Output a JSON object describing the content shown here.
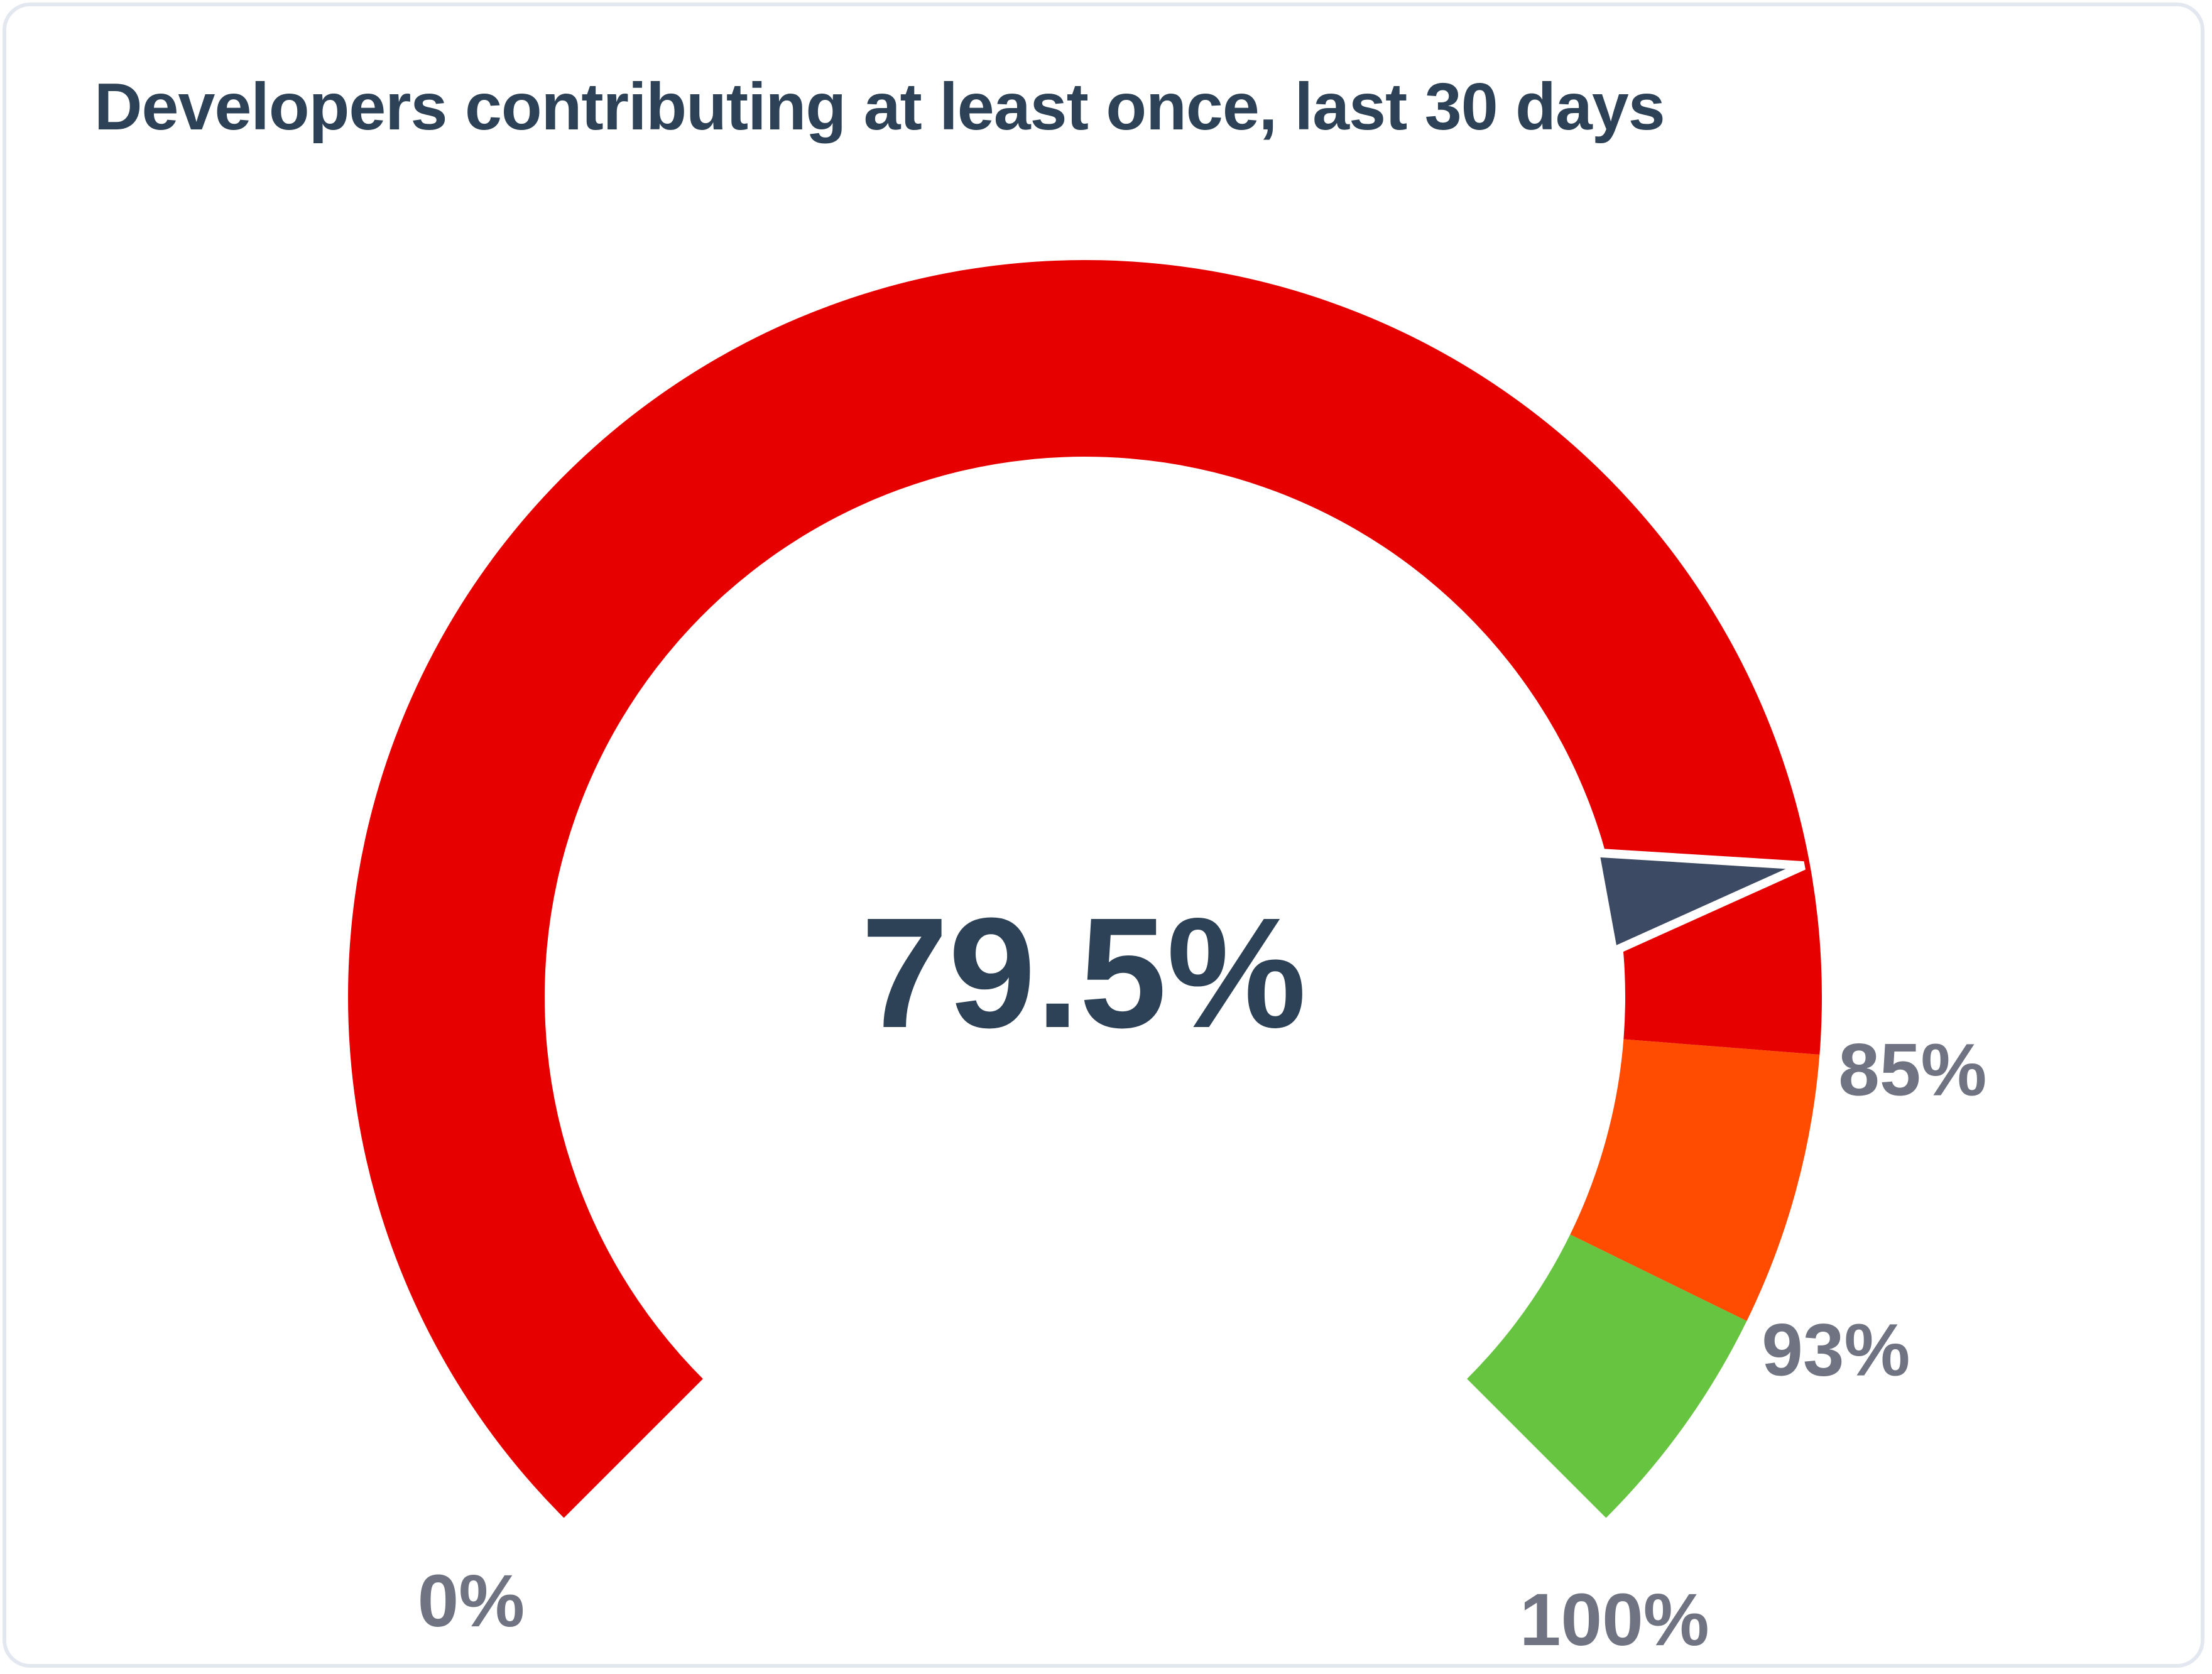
{
  "chart_data": {
    "type": "gauge",
    "title": "Developers contributing at least once, last 30 days",
    "value": 79.5,
    "value_label": "79.5%",
    "min": 0,
    "max": 100,
    "segments": [
      {
        "from": 0,
        "to": 85,
        "color": "#e70000"
      },
      {
        "from": 85,
        "to": 93,
        "color": "#ff4c00"
      },
      {
        "from": 93,
        "to": 100,
        "color": "#67c440"
      }
    ],
    "tick_labels": [
      {
        "value": 0,
        "label": "0%"
      },
      {
        "value": 85,
        "label": "85%"
      },
      {
        "value": 93,
        "label": "93%"
      },
      {
        "value": 100,
        "label": "100%"
      }
    ],
    "needle_color": "#3d4a63"
  }
}
